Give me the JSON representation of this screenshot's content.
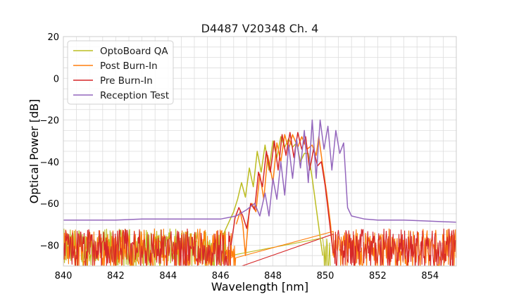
{
  "chart_data": {
    "type": "line",
    "title": "D4487 V20348 Ch. 4",
    "xlabel": "Wavelength [nm]",
    "ylabel": "Optical Power [dB]",
    "xlim": [
      840,
      855
    ],
    "ylim": [
      -90,
      20
    ],
    "xticks": [
      840,
      842,
      844,
      846,
      848,
      850,
      852,
      854
    ],
    "yticks": [
      20,
      0,
      -20,
      -40,
      -60,
      -80
    ],
    "xtick_labels": [
      "840",
      "842",
      "844",
      "846",
      "848",
      "850",
      "852",
      "854"
    ],
    "ytick_labels": [
      "20",
      "0",
      "−20",
      "−40",
      "−60",
      "−80"
    ],
    "grid": true,
    "legend_position": "top-left",
    "series": [
      {
        "name": "OptoBoard QA",
        "color": "#bcbd22",
        "noise_range": [
          [
            840,
            846.2
          ],
          [
            849.9,
            850.2
          ]
        ],
        "x": [
          846.1,
          846.5,
          846.65,
          846.8,
          846.95,
          847.1,
          847.25,
          847.4,
          847.55,
          847.7,
          847.85,
          848.0,
          848.15,
          848.3,
          848.45,
          848.6,
          848.75,
          848.9,
          849.05,
          849.2,
          849.35,
          849.5,
          849.65,
          849.8,
          849.9
        ],
        "y": [
          -75,
          -64,
          -58,
          -50,
          -57,
          -43,
          -52,
          -35,
          -45,
          -32,
          -44,
          -30,
          -38,
          -28,
          -33,
          -29,
          -33,
          -31,
          -40,
          -36,
          -36,
          -48,
          -62,
          -76,
          -85
        ]
      },
      {
        "name": "Post Burn-In",
        "color": "#ff7f0e",
        "noise_range": [
          [
            840,
            846.6
          ],
          [
            850.3,
            855
          ]
        ],
        "x": [
          846.6,
          846.75,
          846.85,
          846.95,
          847.1,
          847.2,
          847.35,
          847.5,
          847.65,
          847.8,
          848.0,
          848.15,
          848.3,
          848.45,
          848.6,
          848.75,
          848.95,
          849.1,
          849.3,
          849.5,
          849.65,
          849.75,
          849.9,
          850.05,
          850.2,
          850.3
        ],
        "y": [
          -70,
          -64,
          -70,
          -85,
          -63,
          -60,
          -64,
          -46,
          -58,
          -37,
          -50,
          -31,
          -40,
          -27,
          -34,
          -27,
          -33,
          -28,
          -34,
          -32,
          -37,
          -28,
          -42,
          -55,
          -70,
          -85
        ]
      },
      {
        "name": "Pre Burn-In",
        "color": "#d62728",
        "noise_range": [
          [
            840,
            846.4
          ],
          [
            850.3,
            855
          ]
        ],
        "x": [
          846.4,
          846.55,
          846.7,
          846.85,
          847.0,
          847.15,
          847.3,
          847.45,
          847.6,
          847.75,
          847.9,
          848.05,
          848.2,
          848.35,
          848.5,
          848.65,
          848.8,
          848.95,
          849.1,
          849.25,
          849.4,
          849.55,
          849.7,
          849.85,
          850.0,
          850.15,
          850.3
        ],
        "y": [
          -80,
          -67,
          -62,
          -66,
          -72,
          -60,
          -63,
          -45,
          -52,
          -35,
          -45,
          -30,
          -44,
          -27,
          -37,
          -26,
          -38,
          -26,
          -34,
          -28,
          -44,
          -34,
          -42,
          -40,
          -52,
          -68,
          -84
        ]
      },
      {
        "name": "Reception Test",
        "color": "#9467bd",
        "x": [
          840,
          841,
          842,
          843,
          844,
          845,
          846,
          846.6,
          847.0,
          847.3,
          847.5,
          847.7,
          847.85,
          848.0,
          848.15,
          848.3,
          848.45,
          848.6,
          848.75,
          848.9,
          849.05,
          849.2,
          849.35,
          849.5,
          849.65,
          849.8,
          849.95,
          850.1,
          850.25,
          850.4,
          850.55,
          850.7,
          850.85,
          851.0,
          851.5,
          852,
          853,
          854,
          855
        ],
        "y": [
          -68,
          -68,
          -68,
          -67.5,
          -67.5,
          -67.5,
          -67.5,
          -66,
          -63,
          -60,
          -66,
          -55,
          -66,
          -48,
          -58,
          -40,
          -56,
          -32,
          -48,
          -29,
          -43,
          -25,
          -50,
          -20,
          -48,
          -20,
          -34,
          -23,
          -44,
          -25,
          -36,
          -31,
          -62,
          -66,
          -67.5,
          -68,
          -68,
          -68.5,
          -69
        ]
      }
    ]
  }
}
